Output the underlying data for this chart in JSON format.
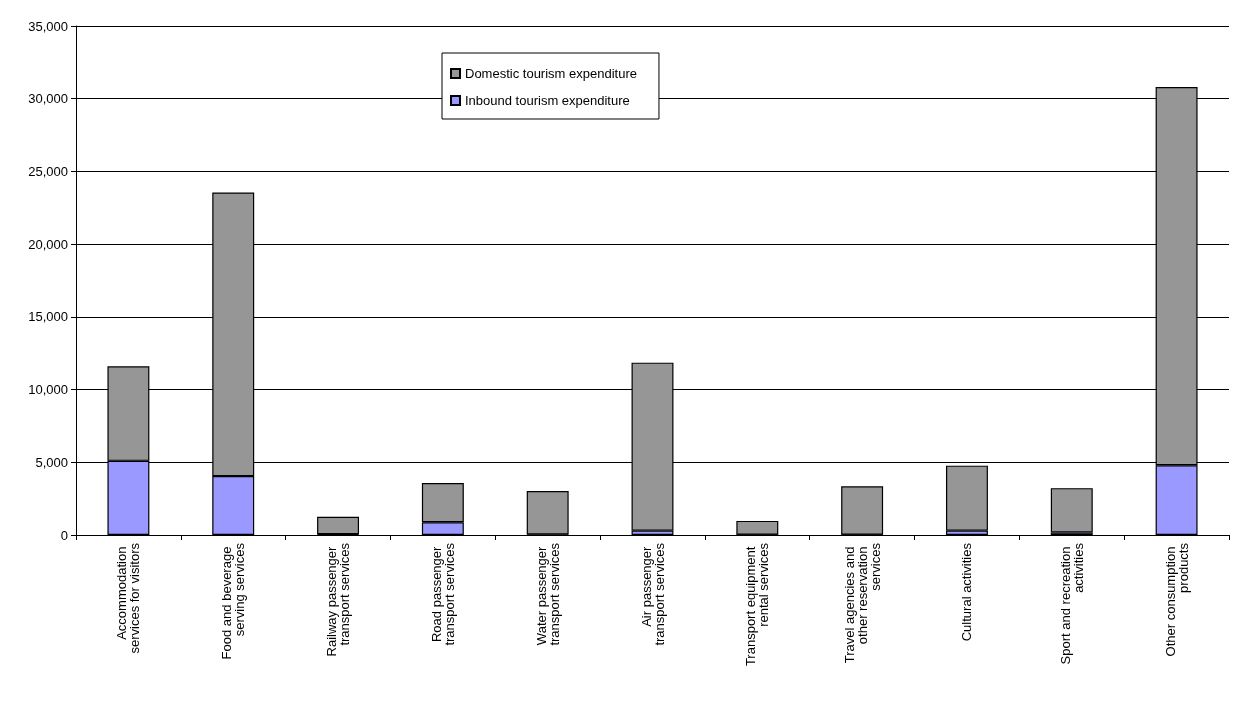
{
  "chart_data": {
    "type": "bar",
    "stacked": true,
    "categories": [
      "Accommodation services for visitors",
      "Food and beverage serving services",
      "Railway passenger transport services",
      "Road passenger transport services",
      "Water passenger transport services",
      "Air passenger transport services",
      "Transport equipment rental services",
      "Travel agencies and other reservation services",
      "Cultural activities",
      "Sport and recreation activities",
      "Other consumption products"
    ],
    "series": [
      {
        "name": "Inbound tourism expenditure",
        "color": "#9999ff",
        "values": [
          5100,
          4050,
          50,
          880,
          30,
          300,
          20,
          20,
          300,
          180,
          4800
        ]
      },
      {
        "name": "Domestic tourism expenditure",
        "color": "#969696",
        "values": [
          6500,
          19500,
          1210,
          2690,
          2990,
          11550,
          950,
          3330,
          4470,
          3040,
          26000
        ]
      }
    ],
    "ylim": [
      0,
      35000
    ],
    "yticks": [
      {
        "value": 0,
        "label": "0"
      },
      {
        "value": 5000,
        "label": "5,000"
      },
      {
        "value": 10000,
        "label": "10,000"
      },
      {
        "value": 15000,
        "label": "15,000"
      },
      {
        "value": 20000,
        "label": "20,000"
      },
      {
        "value": 25000,
        "label": "25,000"
      },
      {
        "value": 30000,
        "label": "30,000"
      },
      {
        "value": 35000,
        "label": "35,000"
      }
    ],
    "grid": "y",
    "legend": "top"
  }
}
